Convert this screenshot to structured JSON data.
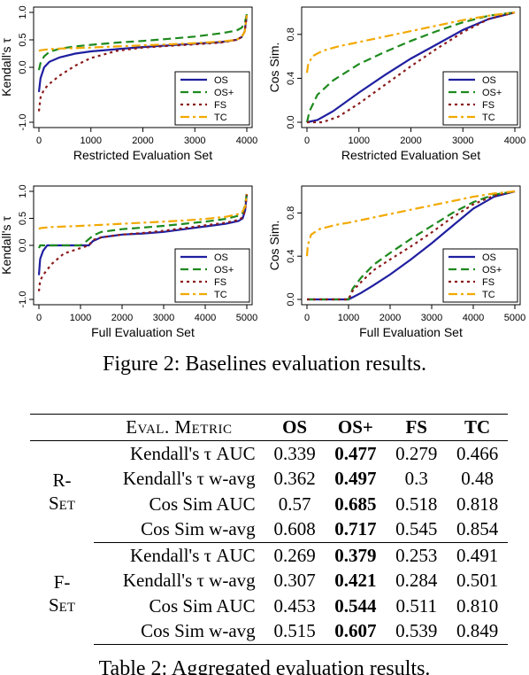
{
  "caption": "Figure 2: Baselines evaluation results.",
  "bottom_caption": "Table 2: Aggregated evaluation results.",
  "colors": {
    "OS": "#1f1fa0",
    "OS+": "#1e8a1e",
    "FS": "#8b1a1a",
    "TC": "#f2a900"
  },
  "chart_data": [
    {
      "type": "line",
      "xlabel": "Restricted Evaluation Set",
      "ylabel": "Kendall's τ",
      "xlim": [
        0,
        4000
      ],
      "ylim": [
        -1,
        1
      ],
      "xticks": [
        0,
        1000,
        2000,
        3000,
        4000
      ],
      "yticks": [
        -1.0,
        0.0,
        0.5,
        1.0
      ],
      "ytick_labels": [
        "-1.0",
        "0.0",
        "0.5",
        "1.0"
      ],
      "legend": "bottom-right",
      "series": [
        {
          "name": "OS",
          "x": [
            0,
            30,
            100,
            200,
            400,
            700,
            1000,
            1500,
            2000,
            2500,
            3000,
            3500,
            3800,
            3900,
            3960,
            4000
          ],
          "y": [
            -0.45,
            -0.2,
            0.0,
            0.1,
            0.18,
            0.25,
            0.29,
            0.33,
            0.37,
            0.4,
            0.43,
            0.46,
            0.5,
            0.55,
            0.65,
            0.95
          ]
        },
        {
          "name": "OS+",
          "x": [
            0,
            30,
            100,
            200,
            400,
            700,
            1000,
            1500,
            2000,
            2500,
            3000,
            3500,
            3800,
            3900,
            3960,
            4000
          ],
          "y": [
            -0.05,
            0.08,
            0.2,
            0.28,
            0.34,
            0.38,
            0.41,
            0.45,
            0.48,
            0.52,
            0.56,
            0.62,
            0.67,
            0.72,
            0.8,
            0.97
          ]
        },
        {
          "name": "FS",
          "x": [
            0,
            30,
            100,
            200,
            400,
            700,
            1000,
            1500,
            2000,
            2500,
            3000,
            3500,
            3800,
            3900,
            3960,
            4000
          ],
          "y": [
            -0.8,
            -0.55,
            -0.4,
            -0.3,
            -0.15,
            0.03,
            0.17,
            0.3,
            0.36,
            0.39,
            0.42,
            0.45,
            0.5,
            0.55,
            0.65,
            0.95
          ]
        },
        {
          "name": "TC",
          "x": [
            0,
            30,
            100,
            200,
            400,
            700,
            1000,
            1500,
            2000,
            2500,
            3000,
            3500,
            3800,
            3900,
            3960,
            4000
          ],
          "y": [
            0.3,
            0.31,
            0.32,
            0.33,
            0.34,
            0.35,
            0.36,
            0.38,
            0.4,
            0.42,
            0.44,
            0.47,
            0.5,
            0.55,
            0.65,
            0.95
          ]
        }
      ]
    },
    {
      "type": "line",
      "xlabel": "Restricted Evaluation Set",
      "ylabel": "Cos Sim.",
      "xlim": [
        0,
        4000
      ],
      "ylim": [
        0,
        1
      ],
      "xticks": [
        0,
        1000,
        2000,
        3000,
        4000
      ],
      "yticks": [
        0.0,
        0.4,
        0.8
      ],
      "ytick_labels": [
        "0.0",
        "0.4",
        "0.8"
      ],
      "legend": "bottom-right",
      "series": [
        {
          "name": "OS",
          "x": [
            0,
            200,
            500,
            1000,
            1500,
            2000,
            2500,
            3000,
            3500,
            4000
          ],
          "y": [
            0.0,
            0.02,
            0.1,
            0.27,
            0.43,
            0.58,
            0.71,
            0.84,
            0.94,
            1.0
          ]
        },
        {
          "name": "OS+",
          "x": [
            0,
            50,
            200,
            500,
            1000,
            1500,
            2000,
            2500,
            3000,
            3500,
            4000
          ],
          "y": [
            0.0,
            0.1,
            0.25,
            0.38,
            0.53,
            0.64,
            0.74,
            0.83,
            0.91,
            0.97,
            1.0
          ]
        },
        {
          "name": "FS",
          "x": [
            0,
            300,
            600,
            1000,
            1500,
            2000,
            2500,
            3000,
            3500,
            4000
          ],
          "y": [
            0.0,
            0.0,
            0.05,
            0.17,
            0.34,
            0.51,
            0.67,
            0.82,
            0.94,
            1.0
          ]
        },
        {
          "name": "TC",
          "x": [
            0,
            20,
            100,
            300,
            600,
            1000,
            1500,
            2000,
            2500,
            3000,
            3500,
            4000
          ],
          "y": [
            0.45,
            0.52,
            0.6,
            0.65,
            0.69,
            0.73,
            0.78,
            0.83,
            0.88,
            0.93,
            0.97,
            1.0
          ]
        }
      ]
    },
    {
      "type": "line",
      "xlabel": "Full Evaluation Set",
      "ylabel": "Kendall's τ",
      "xlim": [
        0,
        5000
      ],
      "ylim": [
        -1,
        1
      ],
      "xticks": [
        0,
        1000,
        2000,
        3000,
        4000,
        5000
      ],
      "yticks": [
        -1.0,
        0.0,
        0.5,
        1.0
      ],
      "ytick_labels": [
        "-1.0",
        "0.0",
        "0.5",
        "1.0"
      ],
      "legend": "bottom-right",
      "series": [
        {
          "name": "OS",
          "x": [
            0,
            30,
            100,
            200,
            400,
            1000,
            1200,
            1300,
            1500,
            2000,
            2500,
            3000,
            3500,
            4000,
            4500,
            4800,
            4900,
            4960,
            5000
          ],
          "y": [
            -0.55,
            -0.25,
            -0.1,
            0.0,
            0.0,
            0.0,
            0.0,
            0.08,
            0.15,
            0.2,
            0.22,
            0.25,
            0.3,
            0.35,
            0.4,
            0.45,
            0.5,
            0.65,
            0.95
          ]
        },
        {
          "name": "OS+",
          "x": [
            0,
            30,
            100,
            200,
            400,
            1000,
            1100,
            1300,
            1500,
            2000,
            2500,
            3000,
            3500,
            4000,
            4500,
            4800,
            4900,
            4960,
            5000
          ],
          "y": [
            -0.05,
            0.0,
            0.0,
            0.0,
            0.0,
            0.0,
            0.05,
            0.18,
            0.25,
            0.3,
            0.33,
            0.36,
            0.4,
            0.44,
            0.49,
            0.55,
            0.6,
            0.75,
            0.97
          ]
        },
        {
          "name": "FS",
          "x": [
            0,
            30,
            100,
            300,
            600,
            1000,
            1200,
            1300,
            1500,
            2000,
            2500,
            3000,
            3500,
            4000,
            4500,
            4800,
            4900,
            4960,
            5000
          ],
          "y": [
            -0.85,
            -0.65,
            -0.55,
            -0.35,
            -0.15,
            -0.05,
            0.0,
            0.1,
            0.15,
            0.2,
            0.23,
            0.27,
            0.32,
            0.37,
            0.42,
            0.47,
            0.52,
            0.65,
            0.95
          ]
        },
        {
          "name": "TC",
          "x": [
            0,
            30,
            300,
            1000,
            1500,
            2000,
            2500,
            3000,
            3500,
            4000,
            4500,
            4800,
            4900,
            4960,
            5000
          ],
          "y": [
            0.3,
            0.32,
            0.34,
            0.36,
            0.38,
            0.4,
            0.42,
            0.44,
            0.46,
            0.49,
            0.53,
            0.58,
            0.63,
            0.72,
            0.95
          ]
        }
      ]
    },
    {
      "type": "line",
      "xlabel": "Full Evaluation Set",
      "ylabel": "Cos Sim.",
      "xlim": [
        0,
        5000
      ],
      "ylim": [
        0,
        1
      ],
      "xticks": [
        0,
        1000,
        2000,
        3000,
        4000,
        5000
      ],
      "yticks": [
        0.0,
        0.4,
        0.8
      ],
      "ytick_labels": [
        "0.0",
        "0.4",
        "0.8"
      ],
      "legend": "bottom-right",
      "series": [
        {
          "name": "OS",
          "x": [
            0,
            1000,
            1100,
            1300,
            1600,
            2000,
            2500,
            3000,
            3500,
            4000,
            4500,
            5000
          ],
          "y": [
            0.0,
            0.0,
            0.02,
            0.06,
            0.13,
            0.23,
            0.37,
            0.52,
            0.68,
            0.84,
            0.95,
            1.0
          ]
        },
        {
          "name": "OS+",
          "x": [
            0,
            1000,
            1100,
            1300,
            1600,
            2000,
            2500,
            3000,
            3500,
            4000,
            4500,
            5000
          ],
          "y": [
            0.0,
            0.0,
            0.1,
            0.2,
            0.32,
            0.43,
            0.56,
            0.68,
            0.8,
            0.9,
            0.97,
            1.0
          ]
        },
        {
          "name": "FS",
          "x": [
            0,
            1000,
            1100,
            1300,
            1600,
            2000,
            2500,
            3000,
            3500,
            4000,
            4500,
            5000
          ],
          "y": [
            0.0,
            0.0,
            0.08,
            0.16,
            0.27,
            0.37,
            0.49,
            0.62,
            0.76,
            0.88,
            0.96,
            1.0
          ]
        },
        {
          "name": "TC",
          "x": [
            0,
            20,
            100,
            300,
            700,
            1000,
            1500,
            2000,
            2500,
            3000,
            3500,
            4000,
            4500,
            5000
          ],
          "y": [
            0.4,
            0.5,
            0.6,
            0.65,
            0.69,
            0.71,
            0.75,
            0.79,
            0.83,
            0.87,
            0.91,
            0.95,
            0.98,
            1.0
          ]
        }
      ]
    },
    {
      "type": "table",
      "columns": [
        "",
        "Eval. Metric",
        "OS",
        "OS+",
        "FS",
        "TC"
      ],
      "groups": [
        {
          "label_top": "R-",
          "label_bottom": "Set",
          "rows": [
            {
              "metric": "Kendall's τ AUC",
              "values": [
                "0.339",
                "0.477",
                "0.279",
                "0.466"
              ],
              "best": 1
            },
            {
              "metric": "Kendall's τ w-avg",
              "values": [
                "0.362",
                "0.497",
                "0.3",
                "0.48"
              ],
              "best": 1
            },
            {
              "metric": "Cos Sim AUC",
              "values": [
                "0.57",
                "0.685",
                "0.518",
                "0.818"
              ],
              "best": 1
            },
            {
              "metric": "Cos Sim w-avg",
              "values": [
                "0.608",
                "0.717",
                "0.545",
                "0.854"
              ],
              "best": 1
            }
          ]
        },
        {
          "label_top": "F-",
          "label_bottom": "Set",
          "rows": [
            {
              "metric": "Kendall's τ AUC",
              "values": [
                "0.269",
                "0.379",
                "0.253",
                "0.491"
              ],
              "best": 1
            },
            {
              "metric": "Kendall's τ w-avg",
              "values": [
                "0.307",
                "0.421",
                "0.284",
                "0.501"
              ],
              "best": 1
            },
            {
              "metric": "Cos Sim AUC",
              "values": [
                "0.453",
                "0.544",
                "0.511",
                "0.810"
              ],
              "best": 1
            },
            {
              "metric": "Cos Sim w-avg",
              "values": [
                "0.515",
                "0.607",
                "0.539",
                "0.849"
              ],
              "best": 1
            }
          ]
        }
      ]
    }
  ]
}
